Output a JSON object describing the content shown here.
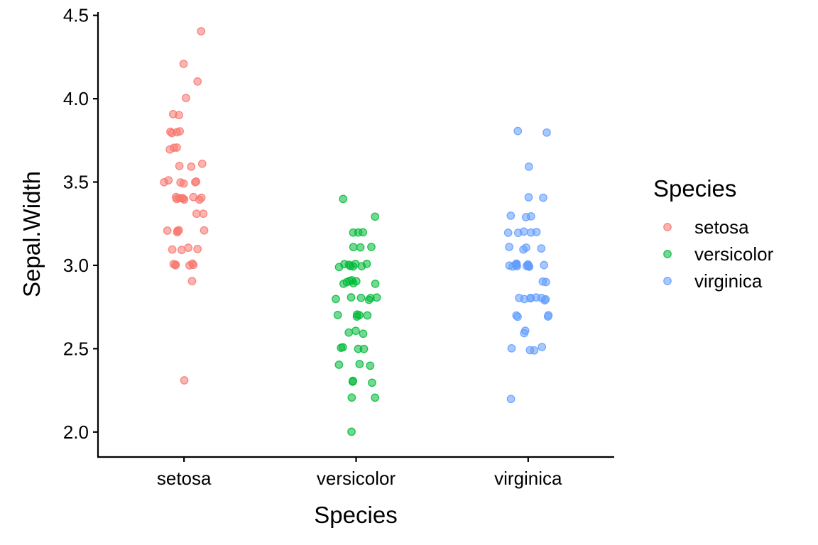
{
  "chart_data": {
    "type": "scatter",
    "title": "",
    "xlabel": "Species",
    "ylabel": "Sepal.Width",
    "categories": [
      "setosa",
      "versicolor",
      "virginica"
    ],
    "ylim": [
      1.85,
      4.52
    ],
    "yticks": [
      2.0,
      2.5,
      3.0,
      3.5,
      4.0,
      4.5
    ],
    "ytick_labels": [
      "2.0",
      "2.5",
      "3.0",
      "3.5",
      "4.0",
      "4.5"
    ],
    "grid": false,
    "legend": {
      "title": "Species",
      "position": "right"
    },
    "point_opacity": 0.55,
    "series": [
      {
        "name": "setosa",
        "color": "#F8766D",
        "values": [
          3.5,
          3.0,
          3.2,
          3.1,
          3.6,
          3.9,
          3.4,
          3.4,
          2.9,
          3.1,
          3.7,
          3.4,
          3.0,
          3.0,
          4.0,
          4.4,
          3.9,
          3.5,
          3.8,
          3.8,
          3.4,
          3.7,
          3.6,
          3.3,
          3.4,
          3.0,
          3.4,
          3.5,
          3.4,
          3.2,
          3.1,
          3.4,
          4.1,
          4.2,
          3.1,
          3.2,
          3.5,
          3.6,
          3.0,
          3.4,
          3.5,
          2.3,
          3.2,
          3.5,
          3.8,
          3.0,
          3.8,
          3.2,
          3.7,
          3.3
        ]
      },
      {
        "name": "versicolor",
        "color": "#00BA38",
        "values": [
          3.2,
          3.2,
          3.1,
          2.3,
          2.8,
          2.8,
          3.3,
          2.4,
          2.9,
          2.7,
          2.0,
          3.0,
          2.2,
          2.9,
          2.9,
          3.1,
          3.0,
          2.7,
          2.2,
          2.5,
          3.2,
          2.8,
          2.5,
          2.8,
          2.9,
          3.0,
          2.8,
          3.0,
          2.9,
          2.6,
          2.4,
          2.4,
          2.7,
          2.7,
          3.0,
          3.4,
          3.1,
          2.3,
          3.0,
          2.5,
          2.6,
          3.0,
          2.6,
          2.3,
          2.7,
          3.0,
          2.9,
          2.9,
          2.5,
          2.8
        ]
      },
      {
        "name": "virginica",
        "color": "#619CFF",
        "values": [
          3.3,
          2.7,
          3.0,
          2.9,
          3.0,
          3.0,
          2.5,
          2.9,
          2.5,
          3.6,
          3.2,
          2.7,
          3.0,
          2.5,
          2.8,
          3.2,
          3.0,
          3.8,
          2.6,
          2.2,
          3.2,
          2.8,
          2.8,
          2.7,
          3.3,
          3.2,
          2.8,
          3.0,
          2.8,
          3.0,
          2.8,
          3.8,
          2.8,
          2.8,
          2.6,
          3.0,
          3.4,
          3.1,
          3.0,
          3.1,
          3.1,
          3.1,
          2.7,
          3.2,
          3.3,
          3.0,
          2.5,
          3.0,
          3.4,
          3.0
        ]
      }
    ]
  }
}
